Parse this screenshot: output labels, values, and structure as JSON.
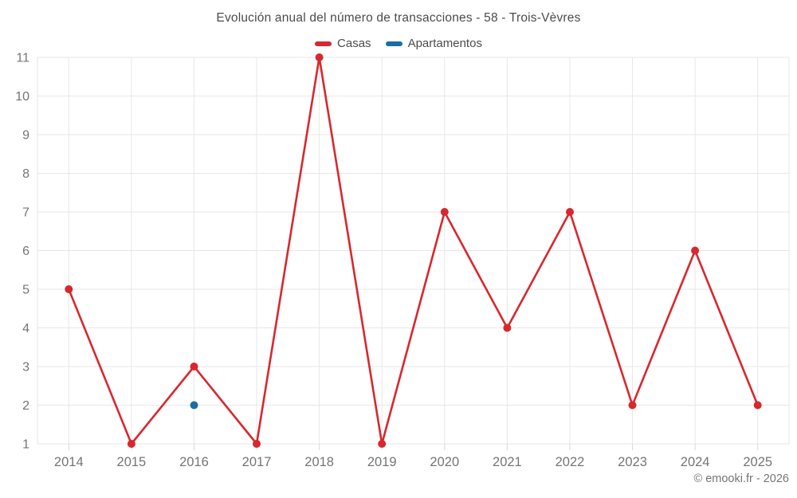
{
  "title": "Evolución anual del número de transacciones - 58 - Trois-Vèvres",
  "footer": "© emooki.fr - 2026",
  "colors": {
    "casas": "#d7282e",
    "apartamentos": "#1a6da3",
    "grid": "#e7e7e7",
    "tick": "#d9d9d9",
    "axis_label": "#757575",
    "title_text": "#4b4b4b"
  },
  "legend": [
    {
      "label": "Casas",
      "color": "#d7282e"
    },
    {
      "label": "Apartamentos",
      "color": "#1a6da3"
    }
  ],
  "chart_data": {
    "type": "line",
    "title": "Evolución anual del número de transacciones - 58 - Trois-Vèvres",
    "categories": [
      "2014",
      "2015",
      "2016",
      "2017",
      "2018",
      "2019",
      "2020",
      "2021",
      "2022",
      "2023",
      "2024",
      "2025"
    ],
    "series": [
      {
        "name": "Casas",
        "color": "#d7282e",
        "values": [
          5,
          1,
          3,
          1,
          11,
          1,
          7,
          4,
          7,
          2,
          6,
          2
        ]
      },
      {
        "name": "Apartamentos",
        "color": "#1a6da3",
        "values": [
          null,
          null,
          2,
          null,
          null,
          null,
          null,
          null,
          null,
          null,
          null,
          null
        ]
      }
    ],
    "xlabel": "",
    "ylabel": "",
    "ylim": [
      1,
      11
    ],
    "yticks": [
      1,
      2,
      3,
      4,
      5,
      6,
      7,
      8,
      9,
      10,
      11
    ],
    "grid": true,
    "legend_position": "top"
  }
}
